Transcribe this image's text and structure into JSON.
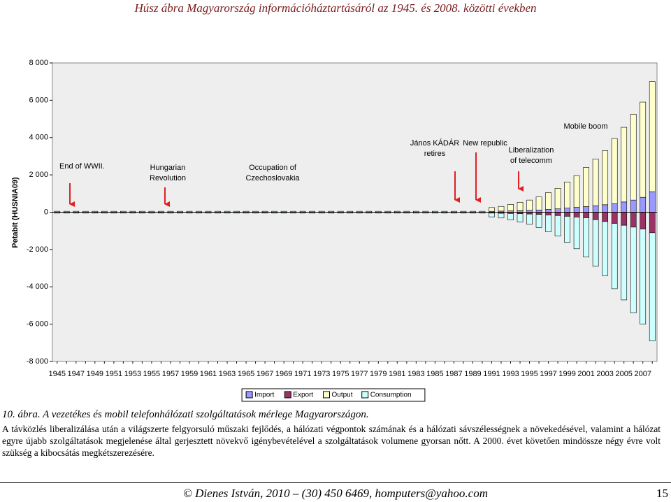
{
  "header": {
    "title": "Húsz ábra Magyarország információháztartásáról az 1945. és 2008. közötti években"
  },
  "chart_data": {
    "type": "bar",
    "stacked": true,
    "y_label": "Petabit (HUSNIA09)",
    "categories": [
      "1945",
      null,
      "1947",
      null,
      "1949",
      null,
      "1951",
      null,
      "1953",
      null,
      "1955",
      null,
      "1957",
      null,
      "1959",
      null,
      "1961",
      null,
      "1963",
      null,
      "1965",
      null,
      "1967",
      null,
      "1969",
      null,
      "1971",
      null,
      "1973",
      null,
      "1975",
      null,
      "1977",
      null,
      "1979",
      null,
      "1981",
      null,
      "1983",
      null,
      "1985",
      null,
      "1987",
      null,
      "1989",
      null,
      "1991",
      null,
      "1993",
      null,
      "1995",
      null,
      "1997",
      null,
      "1999",
      null,
      "2001",
      null,
      "2003",
      null,
      "2005",
      null,
      "2007",
      null
    ],
    "series": [
      {
        "name": "Import",
        "color": "#9999ff",
        "values": [
          10,
          10,
          10,
          10,
          10,
          10,
          10,
          10,
          10,
          10,
          10,
          10,
          10,
          10,
          10,
          10,
          10,
          10,
          10,
          10,
          10,
          10,
          10,
          10,
          10,
          10,
          10,
          10,
          10,
          10,
          10,
          10,
          10,
          10,
          10,
          10,
          10,
          10,
          10,
          10,
          10,
          10,
          10,
          10,
          10,
          10,
          50,
          60,
          70,
          80,
          100,
          120,
          150,
          180,
          220,
          260,
          300,
          350,
          400,
          450,
          550,
          650,
          800,
          1100
        ]
      },
      {
        "name": "Export",
        "color": "#993366",
        "values": [
          -10,
          -10,
          -10,
          -10,
          -10,
          -10,
          -10,
          -10,
          -10,
          -10,
          -10,
          -10,
          -10,
          -10,
          -10,
          -10,
          -10,
          -10,
          -10,
          -10,
          -10,
          -10,
          -10,
          -10,
          -10,
          -10,
          -10,
          -10,
          -10,
          -10,
          -10,
          -10,
          -10,
          -10,
          -10,
          -10,
          -10,
          -10,
          -10,
          -10,
          -10,
          -10,
          -10,
          -10,
          -10,
          -10,
          -50,
          -60,
          -70,
          -80,
          -100,
          -120,
          -150,
          -180,
          -220,
          -260,
          -300,
          -400,
          -500,
          -600,
          -700,
          -800,
          -900,
          -1100
        ]
      },
      {
        "name": "Output",
        "color": "#ffffcc",
        "values": [
          40,
          40,
          40,
          40,
          40,
          40,
          40,
          40,
          40,
          40,
          40,
          40,
          40,
          40,
          40,
          40,
          40,
          40,
          40,
          40,
          40,
          40,
          40,
          40,
          40,
          40,
          40,
          40,
          40,
          40,
          40,
          40,
          40,
          40,
          40,
          40,
          40,
          40,
          40,
          40,
          40,
          40,
          40,
          40,
          40,
          40,
          200,
          250,
          350,
          450,
          550,
          700,
          900,
          1100,
          1400,
          1700,
          2100,
          2500,
          2900,
          3500,
          4000,
          4600,
          5100,
          5900
        ]
      },
      {
        "name": "Consumption",
        "color": "#ccffff",
        "values": [
          -40,
          -40,
          -40,
          -40,
          -40,
          -40,
          -40,
          -40,
          -40,
          -40,
          -40,
          -40,
          -40,
          -40,
          -40,
          -40,
          -40,
          -40,
          -40,
          -40,
          -40,
          -40,
          -40,
          -40,
          -40,
          -40,
          -40,
          -40,
          -40,
          -40,
          -40,
          -40,
          -40,
          -40,
          -40,
          -40,
          -40,
          -40,
          -40,
          -40,
          -40,
          -40,
          -40,
          -40,
          -40,
          -40,
          -200,
          -250,
          -350,
          -450,
          -550,
          -700,
          -900,
          -1100,
          -1400,
          -1700,
          -2100,
          -2500,
          -2900,
          -3500,
          -4000,
          -4600,
          -5100,
          -5800
        ]
      }
    ],
    "ylim": [
      -8000,
      8000
    ],
    "yticks": [
      {
        "value": -8000,
        "label": "-8 000"
      },
      {
        "value": -6000,
        "label": "-6 000"
      },
      {
        "value": -4000,
        "label": "-4 000"
      },
      {
        "value": -2000,
        "label": "-2 000"
      },
      0,
      {
        "value": 2000,
        "label": "2 000"
      },
      {
        "value": 4000,
        "label": "4 000"
      },
      {
        "value": 6000,
        "label": "6 000"
      },
      {
        "value": 8000,
        "label": "8 000"
      }
    ],
    "annotations": [
      [
        "End of WWII."
      ],
      [
        "Hungarian",
        "Revolution"
      ],
      [
        "Occupation of",
        "Czechoslovakia"
      ],
      [
        "János KÁDÁR",
        "retires"
      ],
      [
        "New republic"
      ],
      [
        "Liberalization",
        "of telecomm"
      ],
      [
        "Mobile boom"
      ]
    ],
    "legend": "bottom"
  },
  "caption": "10. ábra. A vezetékes és mobil telefonhálózati szolgáltatások mérlege Magyarországon.",
  "paragraph": "A távközlés liberalizálása után a világszerte felgyorsuló műszaki fejlődés, a hálózati végpontok számának és a hálózati sávszélességnek a növekedésével, valamint a hálózat egyre újabb szolgáltatások megjelenése által gerjesztett növekvő igénybevételével a szolgáltatások volumene gyorsan nőtt. A 2000. évet követően mindössze négy évre volt szükség a kibocsátás megkétszerezésére.",
  "footer": {
    "text": "© Dienes István, 2010 – (30) 450 6469, hompu­ters@yahoo.com",
    "page": "15"
  }
}
